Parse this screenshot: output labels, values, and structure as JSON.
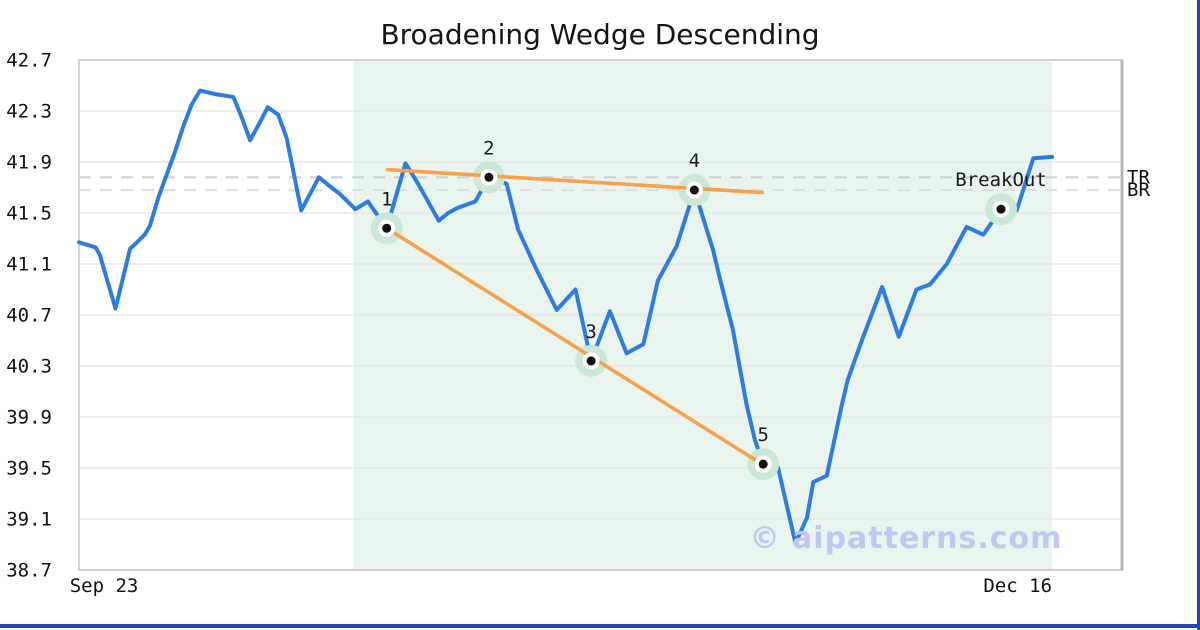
{
  "title": "Broadening Wedge Descending",
  "watermark": "© aipatterns.com",
  "colors": {
    "price_line": "#2b7de1",
    "trendline": "#f7a14b",
    "marker_halo": "#cbe8d7",
    "marker_dot": "#111111",
    "marker_ring": "#ffffff",
    "pattern_zone": "#e9f4ef",
    "gridline": "#e7e7e7",
    "plot_border": "#cfcfcf",
    "plot_border_right": "#b5b5b5",
    "tick_text": "#111111",
    "watermark_text": "#c5c5ee",
    "frame_bar": "#2444b8"
  },
  "chart_data": {
    "type": "line",
    "title": "Broadening Wedge Descending",
    "grid": true,
    "y_axis": {
      "min": 38.7,
      "max": 42.7,
      "ticks": [
        42.7,
        42.3,
        41.9,
        41.5,
        41.1,
        40.7,
        40.3,
        39.9,
        39.5,
        39.1,
        38.7
      ]
    },
    "x_axis": {
      "tick_labels": [
        {
          "label": "Sep 23",
          "pos": 0.024
        },
        {
          "label": "Dec 16",
          "pos": 0.9
        }
      ]
    },
    "pattern_zone": {
      "start": 0.263,
      "end": 0.933
    },
    "series": [
      {
        "name": "price",
        "points": [
          [
            0.0,
            41.27
          ],
          [
            0.016,
            41.23
          ],
          [
            0.02,
            41.17
          ],
          [
            0.035,
            40.75
          ],
          [
            0.049,
            41.22
          ],
          [
            0.053,
            41.25
          ],
          [
            0.063,
            41.33
          ],
          [
            0.068,
            41.4
          ],
          [
            0.076,
            41.62
          ],
          [
            0.084,
            41.8
          ],
          [
            0.092,
            41.98
          ],
          [
            0.1,
            42.18
          ],
          [
            0.108,
            42.35
          ],
          [
            0.116,
            42.46
          ],
          [
            0.132,
            42.43
          ],
          [
            0.148,
            42.41
          ],
          [
            0.156,
            42.25
          ],
          [
            0.164,
            42.07
          ],
          [
            0.174,
            42.22
          ],
          [
            0.181,
            42.33
          ],
          [
            0.191,
            42.27
          ],
          [
            0.199,
            42.09
          ],
          [
            0.213,
            41.52
          ],
          [
            0.23,
            41.78
          ],
          [
            0.239,
            41.72
          ],
          [
            0.25,
            41.65
          ],
          [
            0.265,
            41.53
          ],
          [
            0.277,
            41.59
          ],
          [
            0.295,
            41.38
          ],
          [
            0.313,
            41.89
          ],
          [
            0.325,
            41.73
          ],
          [
            0.345,
            41.44
          ],
          [
            0.354,
            41.5
          ],
          [
            0.363,
            41.54
          ],
          [
            0.373,
            41.57
          ],
          [
            0.38,
            41.59
          ],
          [
            0.393,
            41.78
          ],
          [
            0.41,
            41.73
          ],
          [
            0.421,
            41.37
          ],
          [
            0.439,
            41.05
          ],
          [
            0.458,
            40.74
          ],
          [
            0.476,
            40.9
          ],
          [
            0.491,
            40.34
          ],
          [
            0.509,
            40.73
          ],
          [
            0.525,
            40.4
          ],
          [
            0.541,
            40.47
          ],
          [
            0.555,
            40.97
          ],
          [
            0.573,
            41.24
          ],
          [
            0.59,
            41.68
          ],
          [
            0.608,
            41.21
          ],
          [
            0.615,
            40.97
          ],
          [
            0.627,
            40.58
          ],
          [
            0.64,
            40.0
          ],
          [
            0.648,
            39.72
          ],
          [
            0.656,
            39.53
          ],
          [
            0.67,
            39.51
          ],
          [
            0.687,
            38.91
          ],
          [
            0.698,
            39.11
          ],
          [
            0.704,
            39.39
          ],
          [
            0.717,
            39.44
          ],
          [
            0.731,
            39.98
          ],
          [
            0.737,
            40.19
          ],
          [
            0.751,
            40.51
          ],
          [
            0.77,
            40.92
          ],
          [
            0.786,
            40.53
          ],
          [
            0.803,
            40.9
          ],
          [
            0.816,
            40.94
          ],
          [
            0.832,
            41.1
          ],
          [
            0.851,
            41.39
          ],
          [
            0.867,
            41.33
          ],
          [
            0.884,
            41.53
          ],
          [
            0.899,
            41.52
          ],
          [
            0.915,
            41.93
          ],
          [
            0.933,
            41.94
          ]
        ]
      }
    ],
    "pivot_points": [
      {
        "label": "1",
        "x": 0.295,
        "value": 41.38
      },
      {
        "label": "2",
        "x": 0.393,
        "value": 41.78
      },
      {
        "label": "3",
        "x": 0.491,
        "value": 40.34
      },
      {
        "label": "4",
        "x": 0.59,
        "value": 41.68
      },
      {
        "label": "5",
        "x": 0.656,
        "value": 39.53
      },
      {
        "label": "BreakOut",
        "x": 0.884,
        "value": 41.53
      }
    ],
    "trendlines": [
      {
        "name": "upper",
        "x1": 0.296,
        "v1": 41.84,
        "x2": 0.655,
        "v2": 41.66
      },
      {
        "name": "lower",
        "x1": 0.295,
        "v1": 41.38,
        "x2": 0.655,
        "v2": 39.53
      }
    ],
    "levels": [
      {
        "label": "TR",
        "value": 41.78,
        "color": "#d2d2d2"
      },
      {
        "label": "BR",
        "value": 41.68,
        "color": "#dedede"
      }
    ]
  }
}
